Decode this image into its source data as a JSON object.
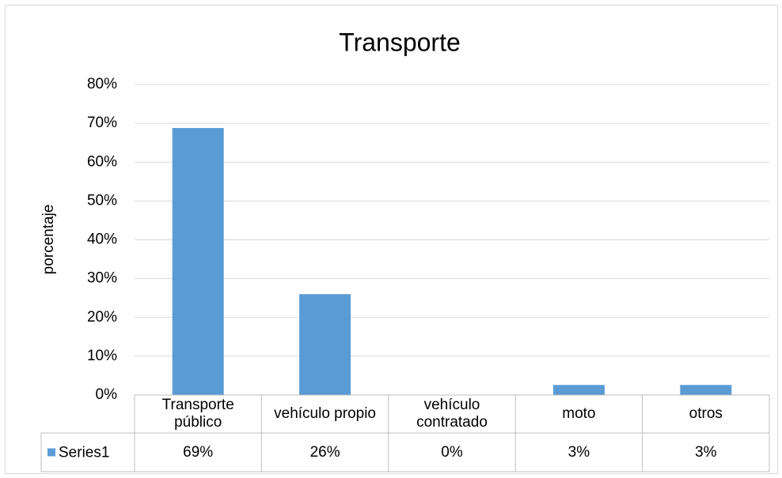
{
  "chart_data": {
    "type": "bar",
    "title": "Transporte",
    "y_label": "porcentaje",
    "categories": [
      "Transporte público",
      "vehículo propio",
      "vehículo contratado",
      "moto",
      "otros"
    ],
    "series": [
      {
        "name": "Series1",
        "color": "#5b9bd5",
        "values": [
          68.8,
          26,
          0,
          2.6,
          2.6
        ],
        "value_labels": [
          "69%",
          "26%",
          "0%",
          "3%",
          "3%"
        ]
      }
    ],
    "ylim": [
      0,
      80
    ],
    "yticks": [
      {
        "value": 0,
        "label": "0%"
      },
      {
        "value": 10,
        "label": "10%"
      },
      {
        "value": 20,
        "label": "20%"
      },
      {
        "value": 30,
        "label": "30%"
      },
      {
        "value": 40,
        "label": "40%"
      },
      {
        "value": 50,
        "label": "50%"
      },
      {
        "value": 60,
        "label": "60%"
      },
      {
        "value": 70,
        "label": "70%"
      },
      {
        "value": 80,
        "label": "80%"
      }
    ],
    "grid": true,
    "data_table": true
  }
}
